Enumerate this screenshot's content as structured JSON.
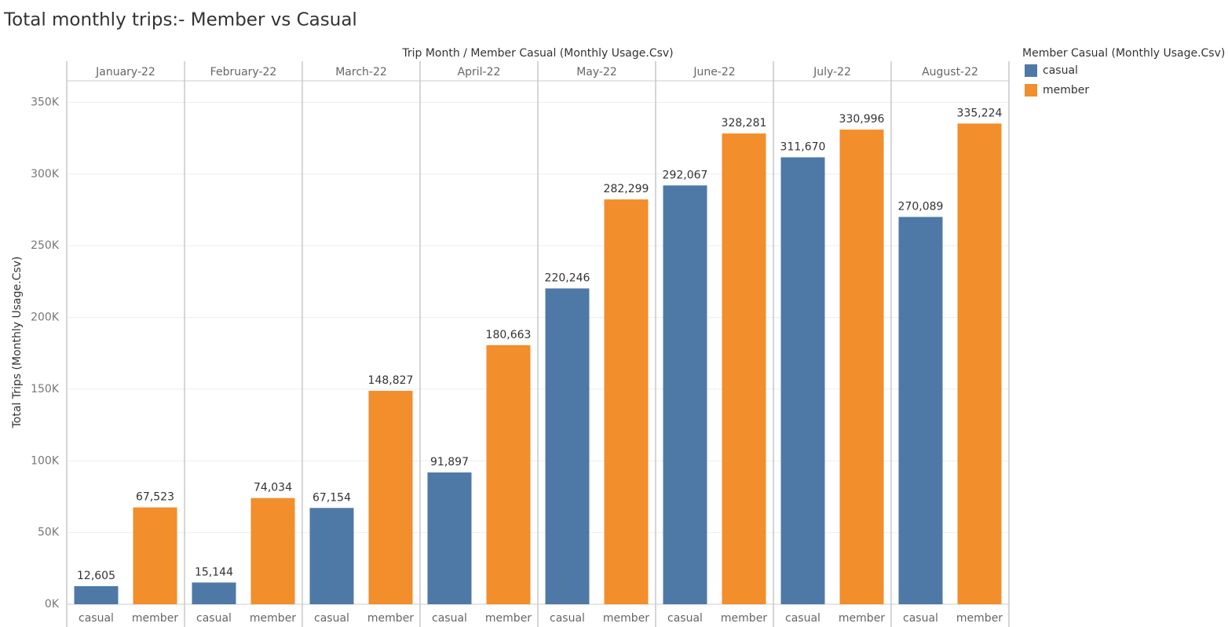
{
  "chart_data": {
    "type": "bar",
    "title": "Total monthly trips:- Member vs Casual",
    "x_header": "Trip Month  /  Member Casual (Monthly Usage.Csv)",
    "y_label": "Total Trips (Monthly Usage.Csv)",
    "legend_title": "Member Casual (Monthly Usage.Csv)",
    "legend_position": "right",
    "grid": true,
    "categories": [
      "January-22",
      "February-22",
      "March-22",
      "April-22",
      "May-22",
      "June-22",
      "July-22",
      "August-22"
    ],
    "series": [
      {
        "name": "casual",
        "color": "#4e79a7",
        "values": [
          12605,
          15144,
          67154,
          91897,
          220246,
          292067,
          311670,
          270089
        ],
        "value_labels": [
          "12,605",
          "15,144",
          "67,154",
          "91,897",
          "220,246",
          "292,067",
          "311,670",
          "270,089"
        ]
      },
      {
        "name": "member",
        "color": "#f28e2b",
        "values": [
          67523,
          74034,
          148827,
          180663,
          282299,
          328281,
          330996,
          335224
        ],
        "value_labels": [
          "67,523",
          "74,034",
          "148,827",
          "180,663",
          "282,299",
          "328,281",
          "330,996",
          "335,224"
        ]
      }
    ],
    "ylim": [
      0,
      365000
    ],
    "yticks": [
      {
        "value": 0,
        "label": "0K"
      },
      {
        "value": 50000,
        "label": "50K"
      },
      {
        "value": 100000,
        "label": "100K"
      },
      {
        "value": 150000,
        "label": "150K"
      },
      {
        "value": 200000,
        "label": "200K"
      },
      {
        "value": 250000,
        "label": "250K"
      },
      {
        "value": 300000,
        "label": "300K"
      },
      {
        "value": 350000,
        "label": "350K"
      }
    ]
  }
}
